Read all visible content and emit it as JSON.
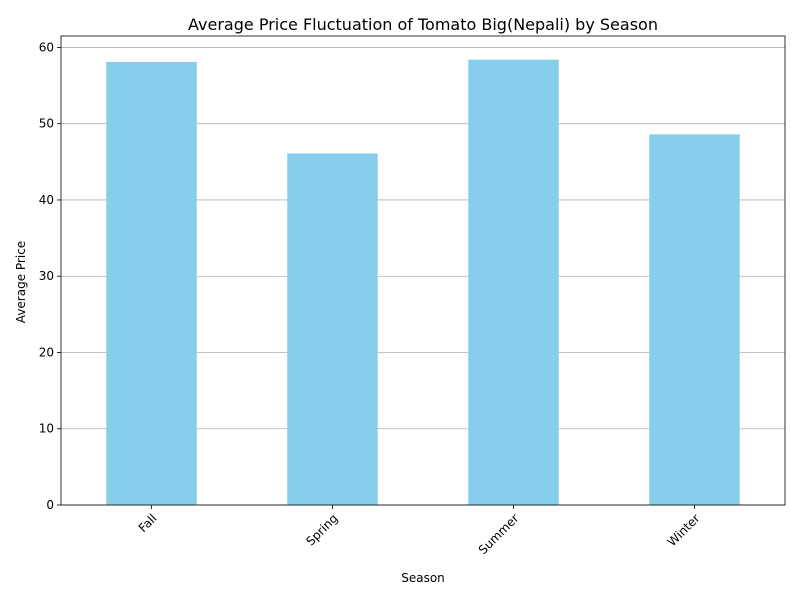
{
  "chart_data": {
    "type": "bar",
    "title": "Average Price Fluctuation of Tomato Big(Nepali) by Season",
    "xlabel": "Season",
    "ylabel": "Average Price",
    "categories": [
      "Fall",
      "Spring",
      "Summer",
      "Winter"
    ],
    "values": [
      58.1,
      46.1,
      58.4,
      48.6
    ],
    "ylim": [
      0,
      61.5
    ],
    "yticks": [
      "0",
      "10",
      "20",
      "30",
      "40",
      "50",
      "60"
    ],
    "grid": "y-axis",
    "bar_color": "#87ceeb",
    "grid_color": "#b0b0b0"
  }
}
